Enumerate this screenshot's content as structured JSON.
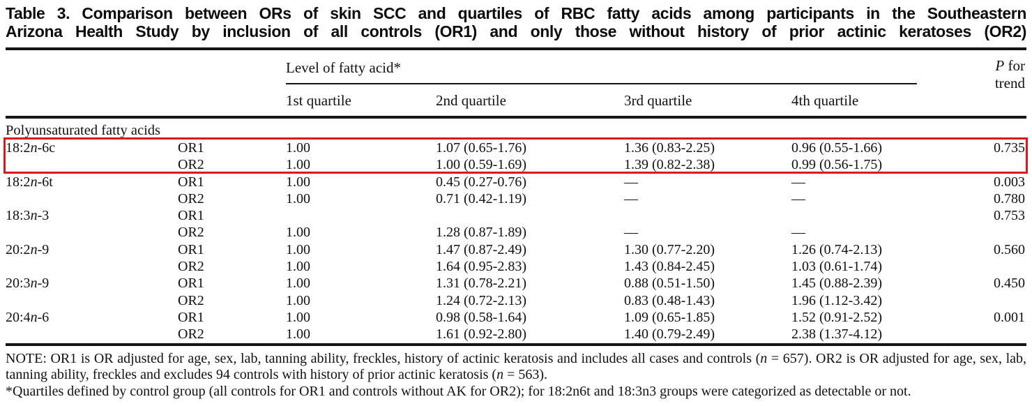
{
  "colors": {
    "highlight_box": "#e01515",
    "text": "#111111",
    "background": "#ffffff"
  },
  "title": {
    "line1": "Table 3. Comparison between ORs of skin SCC and quartiles of RBC fatty acids among participants in the Southeastern",
    "line2": "Arizona Health Study by inclusion of all controls (OR1) and only those without history of prior actinic keratoses (OR2)"
  },
  "header": {
    "spanner_label": "Level of fatty acid*",
    "quartiles": [
      "1st quartile",
      "2nd quartile",
      "3rd quartile",
      "4th quartile"
    ],
    "p_italic": "P",
    "p_rest": " for",
    "p_line2": "trend"
  },
  "section_label": "Polyunsaturated fatty acids",
  "rows": [
    {
      "acid_pre": "18:2",
      "acid_it": "n",
      "acid_post": "-6c",
      "or": "OR1",
      "q1": "1.00",
      "q2": "1.07 (0.65-1.76)",
      "q3": "1.36 (0.83-2.25)",
      "q4": "0.96 (0.55-1.66)",
      "p": "0.735"
    },
    {
      "acid_pre": "",
      "acid_it": "",
      "acid_post": "",
      "or": "OR2",
      "q1": "1.00",
      "q2": "1.00 (0.59-1.69)",
      "q3": "1.39 (0.82-2.38)",
      "q4": "0.99 (0.56-1.75)",
      "p": ""
    },
    {
      "acid_pre": "18:2",
      "acid_it": "n",
      "acid_post": "-6t",
      "or": "OR1",
      "q1": "1.00",
      "q2": "0.45 (0.27-0.76)",
      "q3": "—",
      "q4": "—",
      "p": "0.003"
    },
    {
      "acid_pre": "",
      "acid_it": "",
      "acid_post": "",
      "or": "OR2",
      "q1": "1.00",
      "q2": "0.71 (0.42-1.19)",
      "q3": "—",
      "q4": "—",
      "p": "0.780"
    },
    {
      "acid_pre": "18:3",
      "acid_it": "n",
      "acid_post": "-3",
      "or": "OR1",
      "q1": "",
      "q2": "",
      "q3": "",
      "q4": "",
      "p": "0.753"
    },
    {
      "acid_pre": "",
      "acid_it": "",
      "acid_post": "",
      "or": "OR2",
      "q1": "1.00",
      "q2": "1.28 (0.87-1.89)",
      "q3": "—",
      "q4": "—",
      "p": ""
    },
    {
      "acid_pre": "20:2",
      "acid_it": "n",
      "acid_post": "-9",
      "or": "OR1",
      "q1": "1.00",
      "q2": "1.47 (0.87-2.49)",
      "q3": "1.30 (0.77-2.20)",
      "q4": "1.26 (0.74-2.13)",
      "p": "0.560"
    },
    {
      "acid_pre": "",
      "acid_it": "",
      "acid_post": "",
      "or": "OR2",
      "q1": "1.00",
      "q2": "1.64 (0.95-2.83)",
      "q3": "1.43 (0.84-2.45)",
      "q4": "1.03 (0.61-1.74)",
      "p": ""
    },
    {
      "acid_pre": "20:3",
      "acid_it": "n",
      "acid_post": "-9",
      "or": "OR1",
      "q1": "1.00",
      "q2": "1.31 (0.78-2.21)",
      "q3": "0.88 (0.51-1.50)",
      "q4": "1.45 (0.88-2.39)",
      "p": "0.450"
    },
    {
      "acid_pre": "",
      "acid_it": "",
      "acid_post": "",
      "or": "OR2",
      "q1": "1.00",
      "q2": "1.24 (0.72-2.13)",
      "q3": "0.83 (0.48-1.43)",
      "q4": "1.96 (1.12-3.42)",
      "p": ""
    },
    {
      "acid_pre": "20:4",
      "acid_it": "n",
      "acid_post": "-6",
      "or": "OR1",
      "q1": "1.00",
      "q2": "0.98 (0.58-1.64)",
      "q3": "1.09 (0.65-1.85)",
      "q4": "1.52 (0.91-2.52)",
      "p": "0.001"
    },
    {
      "acid_pre": "",
      "acid_it": "",
      "acid_post": "",
      "or": "OR2",
      "q1": "1.00",
      "q2": "1.61 (0.92-2.80)",
      "q3": "1.40 (0.79-2.49)",
      "q4": "2.38 (1.37-4.12)",
      "p": ""
    }
  ],
  "notes": {
    "note_p1": "NOTE: OR1 is OR adjusted for age, sex, lab, tanning ability, freckles, history of actinic keratosis and includes all cases and controls (",
    "note_n1": "n",
    "note_p2": " = 657). OR2 is OR adjusted for age, sex, lab, tanning ability, freckles and excludes 94 controls with history of prior actinic keratosis (",
    "note_n2": "n",
    "note_p3": " = 563).",
    "asterisk": "*Quartiles defined by control group (all controls for OR1 and controls without AK for OR2); for 18:2n6t and 18:3n3 groups were categorized as detectable or not."
  }
}
